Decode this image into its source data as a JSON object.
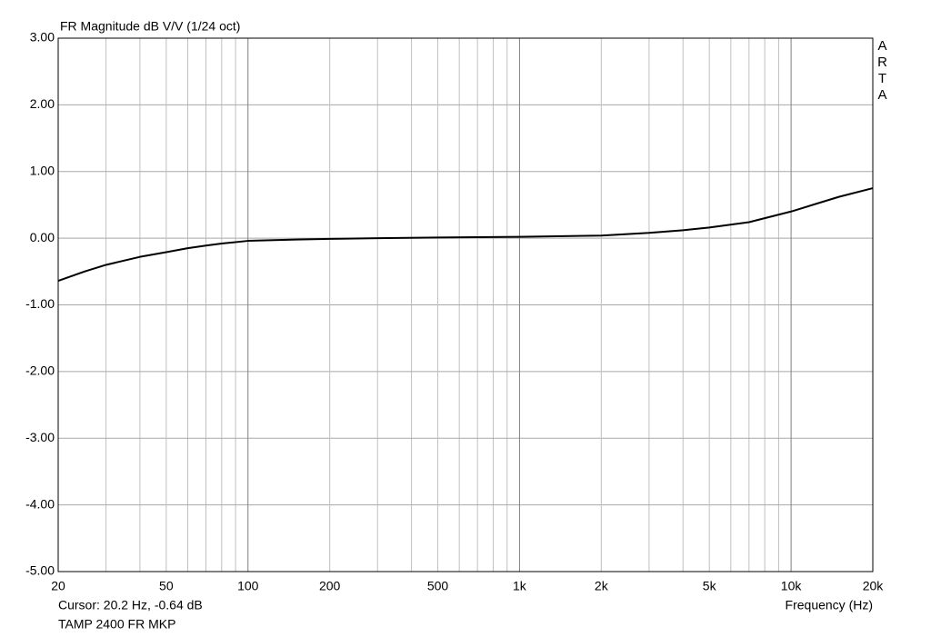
{
  "chart_data": {
    "type": "line",
    "title": "FR Magnitude dB V/V (1/24 oct)",
    "brand": "ARTA",
    "cursor": "Cursor: 20.2 Hz, -0.64 dB",
    "x_label": "Frequency (Hz)",
    "footnote": "TAMP 2400 FR MKP",
    "log_x": true,
    "grid": true,
    "xlim": [
      20,
      20000
    ],
    "xticks": [
      20,
      50,
      100,
      200,
      500,
      {
        "value": 1000,
        "label": "1k"
      },
      {
        "value": 2000,
        "label": "2k"
      },
      {
        "value": 5000,
        "label": "5k"
      },
      {
        "value": 10000,
        "label": "10k"
      },
      {
        "value": 20000,
        "label": "20k"
      }
    ],
    "minor_xticks": [
      30,
      40,
      60,
      70,
      80,
      90,
      300,
      400,
      600,
      700,
      800,
      900,
      3000,
      4000,
      6000,
      7000,
      8000,
      9000
    ],
    "ylim": [
      -5,
      3
    ],
    "yticks": [
      {
        "value": -5,
        "label": "-5.00"
      },
      {
        "value": -4,
        "label": "-4.00"
      },
      {
        "value": -3,
        "label": "-3.00"
      },
      {
        "value": -2,
        "label": "-2.00"
      },
      {
        "value": -1,
        "label": "-1.00"
      },
      {
        "value": 0,
        "label": "0.00"
      },
      {
        "value": 1,
        "label": "1.00"
      },
      {
        "value": 2,
        "label": "2.00"
      },
      {
        "value": 3,
        "label": "3.00"
      }
    ],
    "x": [
      20,
      25,
      30,
      40,
      50,
      60,
      70,
      80,
      100,
      150,
      200,
      300,
      500,
      1000,
      2000,
      3000,
      4000,
      5000,
      7000,
      10000,
      15000,
      20000
    ],
    "series": [
      {
        "name": "TAMP 2400 FR MKP",
        "color": "#000000",
        "values": [
          -0.64,
          -0.5,
          -0.4,
          -0.28,
          -0.21,
          -0.15,
          -0.11,
          -0.08,
          -0.04,
          -0.02,
          -0.01,
          0.0,
          0.01,
          0.02,
          0.04,
          0.08,
          0.12,
          0.16,
          0.24,
          0.4,
          0.62,
          0.75
        ]
      }
    ]
  }
}
